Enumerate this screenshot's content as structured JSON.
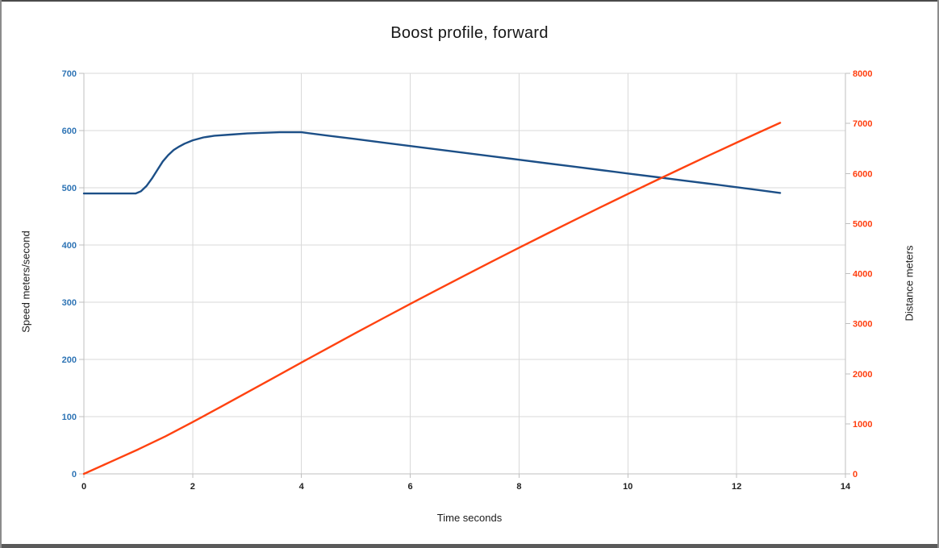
{
  "window": {
    "background": "#FFFFFF",
    "border_top_color": "#4A4A4A",
    "border_side_color": "#8C8C8C",
    "border_bottom_color": "#5A5A5A"
  },
  "chart_data": {
    "type": "line",
    "title": "Boost profile, forward",
    "xlabel": "Time seconds",
    "ylabel_left": "Speed meters/second",
    "ylabel_right": "Distance meters",
    "legend": "none",
    "grid": true,
    "grid_color": "#D9D9D9",
    "axis_color": "#BFBFBF",
    "x_axis": {
      "min": 0,
      "max": 14,
      "ticks": [
        0,
        2,
        4,
        6,
        8,
        10,
        12,
        14
      ],
      "label_color": "#1F1F1F"
    },
    "y_axis_left": {
      "min": 0,
      "max": 700,
      "ticks": [
        0,
        100,
        200,
        300,
        400,
        500,
        600,
        700
      ],
      "label_color": "#2E74B5"
    },
    "y_axis_right": {
      "min": 0,
      "max": 8000,
      "ticks": [
        0,
        1000,
        2000,
        3000,
        4000,
        5000,
        6000,
        7000,
        8000
      ],
      "label_color": "#FF3D0D"
    },
    "series": [
      {
        "name": "Speed meters/second",
        "slug": "speed",
        "axis": "left",
        "color": "#1C4F87",
        "points": [
          [
            0,
            490
          ],
          [
            0.5,
            490
          ],
          [
            0.95,
            490
          ],
          [
            1.05,
            494
          ],
          [
            1.15,
            503
          ],
          [
            1.25,
            516
          ],
          [
            1.35,
            531
          ],
          [
            1.45,
            546
          ],
          [
            1.55,
            557
          ],
          [
            1.65,
            566
          ],
          [
            1.75,
            572
          ],
          [
            1.85,
            577
          ],
          [
            2.0,
            583
          ],
          [
            2.2,
            588
          ],
          [
            2.4,
            591
          ],
          [
            2.7,
            593
          ],
          [
            3.0,
            595
          ],
          [
            3.3,
            596
          ],
          [
            3.6,
            597
          ],
          [
            4.0,
            597
          ],
          [
            4.5,
            591
          ],
          [
            5.0,
            585
          ],
          [
            5.5,
            579
          ],
          [
            6.0,
            573
          ],
          [
            6.5,
            567
          ],
          [
            7.0,
            561
          ],
          [
            7.5,
            555
          ],
          [
            8.0,
            549
          ],
          [
            8.5,
            543
          ],
          [
            9.0,
            537
          ],
          [
            9.5,
            531
          ],
          [
            10.0,
            525
          ],
          [
            10.5,
            519
          ],
          [
            11.0,
            513
          ],
          [
            11.5,
            507
          ],
          [
            12.0,
            501
          ],
          [
            12.4,
            496
          ],
          [
            12.8,
            491
          ]
        ]
      },
      {
        "name": "Distance meters",
        "slug": "distance",
        "axis": "right",
        "color": "#FF4210",
        "points": [
          [
            0,
            0
          ],
          [
            0.5,
            245
          ],
          [
            1,
            490
          ],
          [
            1.5,
            750
          ],
          [
            2,
            1035
          ],
          [
            2.5,
            1330
          ],
          [
            3,
            1627
          ],
          [
            3.5,
            1925
          ],
          [
            4,
            2224
          ],
          [
            4.5,
            2521
          ],
          [
            5,
            2815
          ],
          [
            5.5,
            3106
          ],
          [
            6,
            3394
          ],
          [
            6.5,
            3679
          ],
          [
            7,
            3961
          ],
          [
            7.5,
            4240
          ],
          [
            8,
            4516
          ],
          [
            8.5,
            4789
          ],
          [
            9,
            5059
          ],
          [
            9.5,
            5326
          ],
          [
            10,
            5590
          ],
          [
            10.5,
            5851
          ],
          [
            11,
            6109
          ],
          [
            11.5,
            6364
          ],
          [
            12,
            6616
          ],
          [
            12.4,
            6815
          ],
          [
            12.8,
            7012
          ]
        ]
      }
    ]
  }
}
